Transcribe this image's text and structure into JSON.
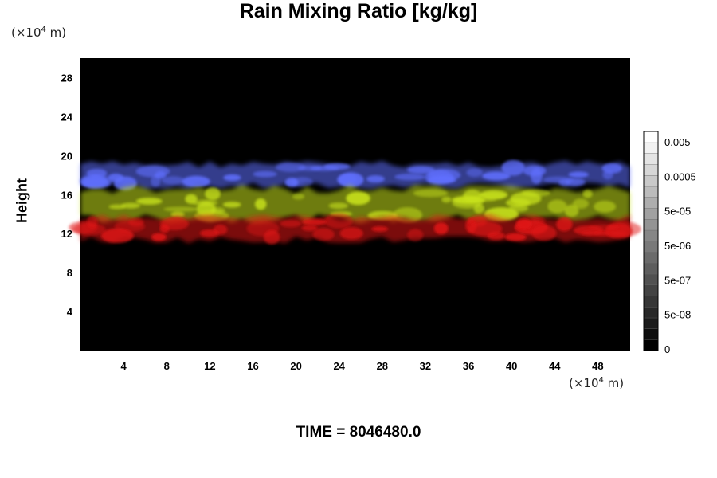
{
  "chart_data": {
    "type": "heatmap",
    "title": "Rain Mixing Ratio [kg/kg]",
    "ylabel": "Height",
    "xlabel": "",
    "x_unit": {
      "prefix": "(×10",
      "exp": "4",
      "suffix": " m)"
    },
    "y_unit": {
      "prefix": "(×10",
      "exp": "4",
      "suffix": " m)"
    },
    "xlim": [
      0,
      51
    ],
    "ylim": [
      0,
      30
    ],
    "x_ticks": [
      4,
      8,
      12,
      16,
      20,
      24,
      28,
      32,
      36,
      40,
      44,
      48
    ],
    "y_ticks": [
      4,
      8,
      12,
      16,
      20,
      24,
      28
    ],
    "background_color": "#000000",
    "bands": [
      {
        "color": "#6070ff",
        "y_range": [
          16.5,
          19.5
        ],
        "note_value": "blue"
      },
      {
        "color": "#c8e21a",
        "y_range": [
          13,
          17
        ],
        "note_value": "yellow"
      },
      {
        "color": "#e01414",
        "y_range": [
          11,
          14
        ],
        "note_value": "red"
      }
    ],
    "colorbar": {
      "labels": [
        "0.005",
        "0.0005",
        "5e-05",
        "5e-06",
        "5e-07",
        "5e-08",
        "0"
      ],
      "range": [
        0,
        0.0125
      ],
      "colors": [
        "#000000",
        "#ffffff"
      ]
    }
  },
  "footer": {
    "time_label": "TIME = 8046480.0"
  }
}
